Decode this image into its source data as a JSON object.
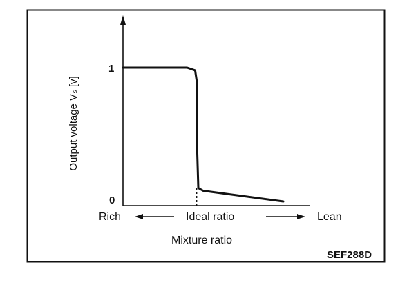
{
  "chart_data": {
    "type": "line",
    "title": "",
    "xlabel": "Mixture ratio",
    "ylabel": "Output voltage Vₛ [v]",
    "y_ticks": [
      "1",
      "0"
    ],
    "x_annotations": {
      "left": "Rich",
      "center": "Ideal ratio",
      "right": "Lean"
    },
    "series": [
      {
        "values_note": "",
        "points": [
          {
            "x": 0.0,
            "y": 1.0
          },
          {
            "x": 0.4,
            "y": 1.0
          },
          {
            "x": 0.45,
            "y": 0.98
          },
          {
            "x": 0.46,
            "y": 0.9
          },
          {
            "x": 0.46,
            "y": 0.5
          },
          {
            "x": 0.47,
            "y": 0.1
          },
          {
            "x": 0.5,
            "y": 0.08
          },
          {
            "x": 1.0,
            "y": 0.0
          }
        ]
      }
    ],
    "ideal_ratio_x": 0.46,
    "grid": false
  },
  "figure_code": "SEF288D",
  "colors": {
    "ink": "#111111",
    "background": "#ffffff"
  }
}
